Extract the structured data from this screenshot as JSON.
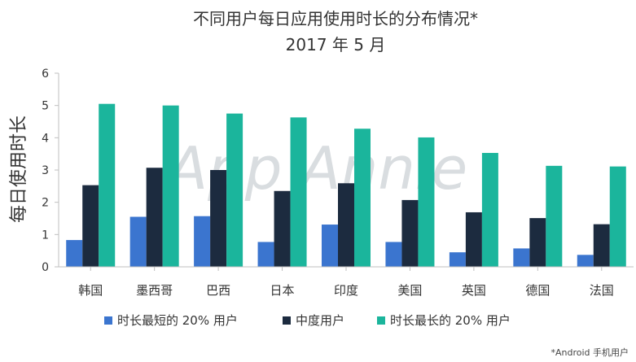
{
  "chart_data": {
    "type": "bar",
    "title": "不同用户每日应用使用时长的分布情况*",
    "subtitle": "2017 年 5 月",
    "xlabel": "",
    "ylabel": "每日使用时长",
    "ylim": [
      0,
      6
    ],
    "yticks": [
      "0",
      "1",
      "2",
      "3",
      "4",
      "5",
      "6"
    ],
    "categories": [
      "韩国",
      "墨西哥",
      "巴西",
      "日本",
      "印度",
      "美国",
      "英国",
      "德国",
      "法国"
    ],
    "series": [
      {
        "name": "时长最短的 20% 用户",
        "color": "#3b75cf",
        "values": [
          0.83,
          1.55,
          1.57,
          0.77,
          1.31,
          0.77,
          0.45,
          0.57,
          0.37
        ]
      },
      {
        "name": "中度用户",
        "color": "#1c2b3f",
        "values": [
          2.53,
          3.07,
          3.0,
          2.35,
          2.59,
          2.07,
          1.69,
          1.51,
          1.32
        ]
      },
      {
        "name": "时长最长的 20% 用户",
        "color": "#1bb59c",
        "values": [
          5.05,
          5.0,
          4.75,
          4.63,
          4.28,
          4.01,
          3.53,
          3.13,
          3.11
        ]
      }
    ],
    "legend_position": "bottom",
    "grid": false
  },
  "watermark": "App Annie",
  "footnote": "*Android 手机用户"
}
